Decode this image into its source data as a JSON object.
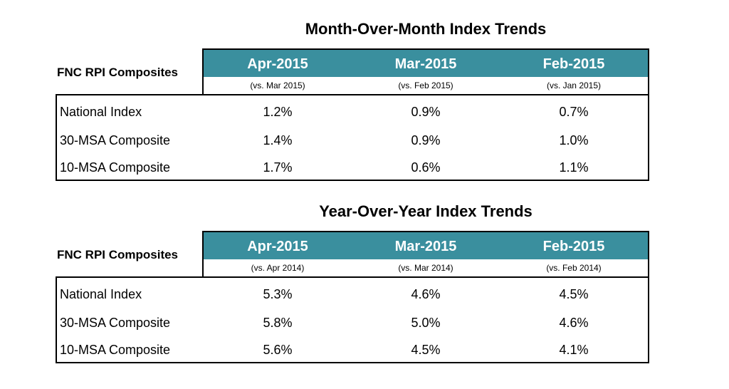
{
  "chart_data": [
    {
      "type": "table",
      "title": "Month-Over-Month Index Trends",
      "corner_label": "FNC RPI Composites",
      "header_color": "#3a8f9e",
      "columns": [
        {
          "label": "Apr-2015",
          "sub": "(vs. Mar 2015)"
        },
        {
          "label": "Mar-2015",
          "sub": "(vs. Feb 2015)"
        },
        {
          "label": "Feb-2015",
          "sub": "(vs. Jan 2015)"
        }
      ],
      "rows": [
        {
          "label": "National Index",
          "values": [
            "1.2%",
            "0.9%",
            "0.7%"
          ]
        },
        {
          "label": "30-MSA Composite",
          "values": [
            "1.4%",
            "0.9%",
            "1.0%"
          ]
        },
        {
          "label": "10-MSA Composite",
          "values": [
            "1.7%",
            "0.6%",
            "1.1%"
          ]
        }
      ]
    },
    {
      "type": "table",
      "title": "Year-Over-Year Index Trends",
      "corner_label": "FNC RPI Composites",
      "header_color": "#3a8f9e",
      "columns": [
        {
          "label": "Apr-2015",
          "sub": "(vs. Apr 2014)"
        },
        {
          "label": "Mar-2015",
          "sub": "(vs. Mar 2014)"
        },
        {
          "label": "Feb-2015",
          "sub": "(vs. Feb 2014)"
        }
      ],
      "rows": [
        {
          "label": "National Index",
          "values": [
            "5.3%",
            "4.6%",
            "4.5%"
          ]
        },
        {
          "label": "30-MSA Composite",
          "values": [
            "5.8%",
            "5.0%",
            "4.6%"
          ]
        },
        {
          "label": "10-MSA Composite",
          "values": [
            "5.6%",
            "4.5%",
            "4.1%"
          ]
        }
      ]
    }
  ]
}
